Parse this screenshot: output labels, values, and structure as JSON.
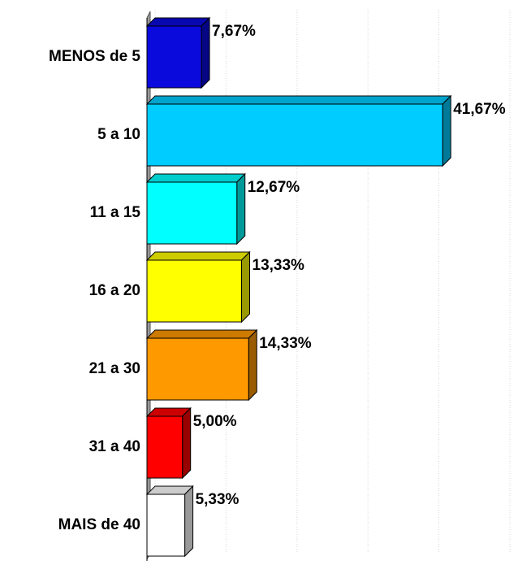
{
  "chart_data": {
    "type": "bar3d-horizontal",
    "categories": [
      "MENOS de 5",
      "5 a 10",
      "11 a 15",
      "16 a 20",
      "21 a 30",
      "31 a 40",
      "MAIS de 40"
    ],
    "values": [
      7.67,
      41.67,
      12.67,
      13.33,
      14.33,
      5.0,
      5.33
    ],
    "value_labels": [
      "7,67%",
      "41,67%",
      "12,67%",
      "13,33%",
      "14,33%",
      "5,00%",
      "5,33%"
    ],
    "colors": [
      "#0a0adc",
      "#00ccff",
      "#00ffff",
      "#ffff00",
      "#ff9900",
      "#ff0000",
      "#ffffff"
    ],
    "xlim": [
      0,
      50
    ],
    "xticks": [
      0,
      10,
      20,
      30,
      40,
      50
    ],
    "grid": true
  }
}
